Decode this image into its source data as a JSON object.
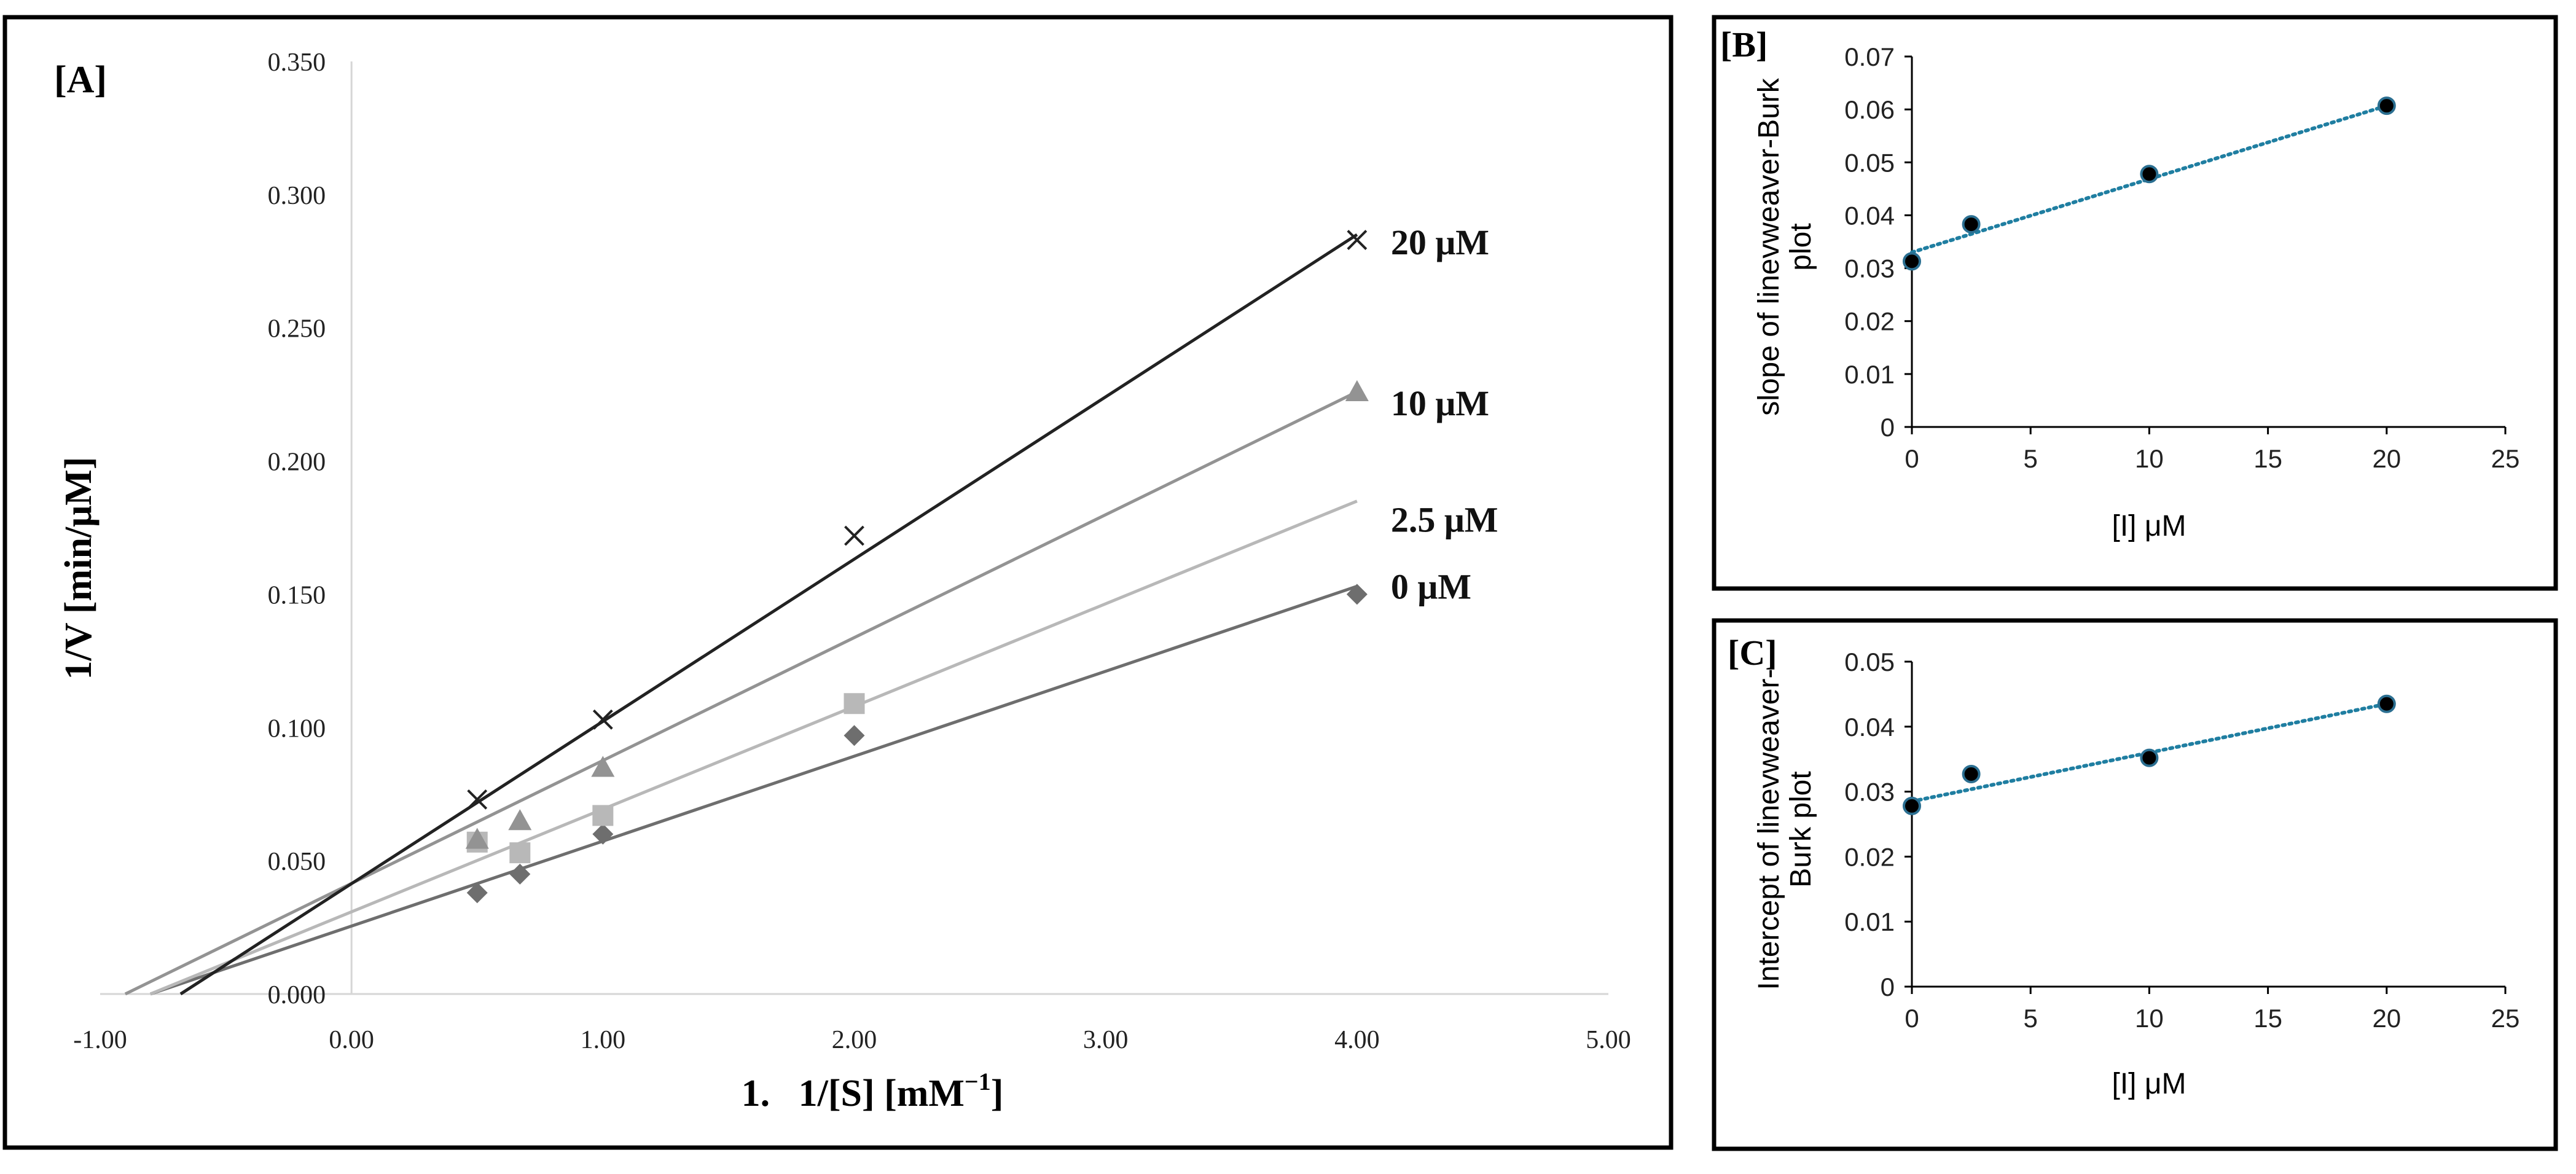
{
  "chart_data": [
    {
      "panel_label": "[A]",
      "type": "line",
      "xlabel": "1.   1/[S] [mM",
      "xlabel_sup": "−1",
      "xlabel_end": "]",
      "ylabel": "1/V [min/μM]",
      "xlim": [
        -1.0,
        5.0
      ],
      "ylim": [
        0.0,
        0.35
      ],
      "xticks": [
        -1.0,
        0.0,
        1.0,
        2.0,
        3.0,
        4.0,
        5.0
      ],
      "xtick_labels": [
        "-1.00",
        "0.00",
        "1.00",
        "2.00",
        "3.00",
        "4.00",
        "5.00"
      ],
      "yticks": [
        0.0,
        0.05,
        0.1,
        0.15,
        0.2,
        0.25,
        0.3,
        0.35
      ],
      "ytick_labels": [
        "0.000",
        "0.050",
        "0.100",
        "0.150",
        "0.200",
        "0.250",
        "0.300",
        "0.350"
      ],
      "series": [
        {
          "name": "0 μM",
          "marker": "diamond",
          "color": "#6e6e6e",
          "points": [
            [
              0.5,
              0.038
            ],
            [
              0.67,
              0.045
            ],
            [
              1.0,
              0.06
            ],
            [
              2.0,
              0.097
            ],
            [
              4.0,
              0.15
            ]
          ],
          "fit": [
            [
              -0.8,
              0.0
            ],
            [
              4.0,
              0.153
            ]
          ]
        },
        {
          "name": "2.5 μM",
          "marker": "square",
          "color": "#b8b8b8",
          "points": [
            [
              0.5,
              0.057
            ],
            [
              0.67,
              0.053
            ],
            [
              1.0,
              0.067
            ],
            [
              2.0,
              0.109
            ]
          ],
          "fit": [
            [
              -0.8,
              0.0
            ],
            [
              4.0,
              0.185
            ]
          ]
        },
        {
          "name": "10 μM",
          "marker": "triangle",
          "color": "#939393",
          "points": [
            [
              0.5,
              0.058
            ],
            [
              0.67,
              0.065
            ],
            [
              1.0,
              0.085
            ],
            [
              4.0,
              0.226
            ]
          ],
          "fit": [
            [
              -0.9,
              0.0
            ],
            [
              4.0,
              0.226
            ]
          ]
        },
        {
          "name": "20 μM",
          "marker": "x",
          "color": "#222222",
          "points": [
            [
              0.5,
              0.073
            ],
            [
              1.0,
              0.103
            ],
            [
              2.0,
              0.172
            ],
            [
              4.0,
              0.283
            ]
          ],
          "fit": [
            [
              -0.68,
              0.0
            ],
            [
              4.0,
              0.285
            ]
          ]
        }
      ]
    },
    {
      "panel_label": "[B]",
      "type": "scatter",
      "xlabel": "[I] μM",
      "ylabel_lines": [
        "slope of linevweaver-Burk",
        "plot"
      ],
      "xlim": [
        0,
        25
      ],
      "ylim": [
        0,
        0.07
      ],
      "xtick_labels": [
        "0",
        "5",
        "10",
        "15",
        "20",
        "25"
      ],
      "ytick_labels": [
        "0",
        "0.01",
        "0.02",
        "0.03",
        "0.04",
        "0.05",
        "0.06",
        "0.07"
      ],
      "x": [
        0,
        2.5,
        10,
        20
      ],
      "y": [
        0.0313,
        0.0383,
        0.0478,
        0.0607
      ],
      "trendline": [
        [
          0,
          0.033
        ],
        [
          20,
          0.0607
        ]
      ],
      "point_color": "#000000",
      "point_edge": "#2b6f91",
      "trend_color": "#1f7ea1"
    },
    {
      "panel_label": "[C]",
      "type": "scatter",
      "xlabel": "[I] μM",
      "ylabel_lines": [
        "Intercept of linevweaver-",
        "Burk plot"
      ],
      "xlim": [
        0,
        25
      ],
      "ylim": [
        0,
        0.05
      ],
      "xtick_labels": [
        "0",
        "5",
        "10",
        "15",
        "20",
        "25"
      ],
      "ytick_labels": [
        "0",
        "0.01",
        "0.02",
        "0.03",
        "0.04",
        "0.05"
      ],
      "x": [
        0,
        2.5,
        10,
        20
      ],
      "y": [
        0.0278,
        0.0327,
        0.0352,
        0.0435
      ],
      "trendline": [
        [
          0,
          0.0285
        ],
        [
          20,
          0.0435
        ]
      ],
      "point_color": "#000000",
      "point_edge": "#2b6f91",
      "trend_color": "#1f7ea1"
    }
  ]
}
